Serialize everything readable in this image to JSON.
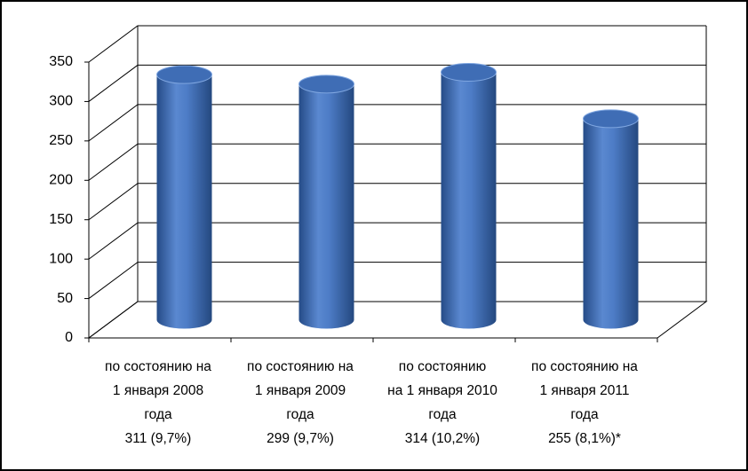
{
  "chart_data": {
    "type": "cylinder",
    "categories": [
      "по состоянию на\n1 января 2008\nгода\n311 (9,7%)",
      "по состоянию на\n1 января 2009\nгода\n299 (9,7%)",
      "по состоянию\nна 1 января 2010\nгода\n314 (10,2%)",
      "по состоянию на\n1 января 2011\nгода\n255 (8,1%)*"
    ],
    "values": [
      311,
      299,
      314,
      255
    ],
    "color": "#4a78c0",
    "ylim": [
      0,
      350
    ],
    "yticks": [
      0,
      50,
      100,
      150,
      200,
      250,
      300,
      350
    ],
    "grid": true
  }
}
